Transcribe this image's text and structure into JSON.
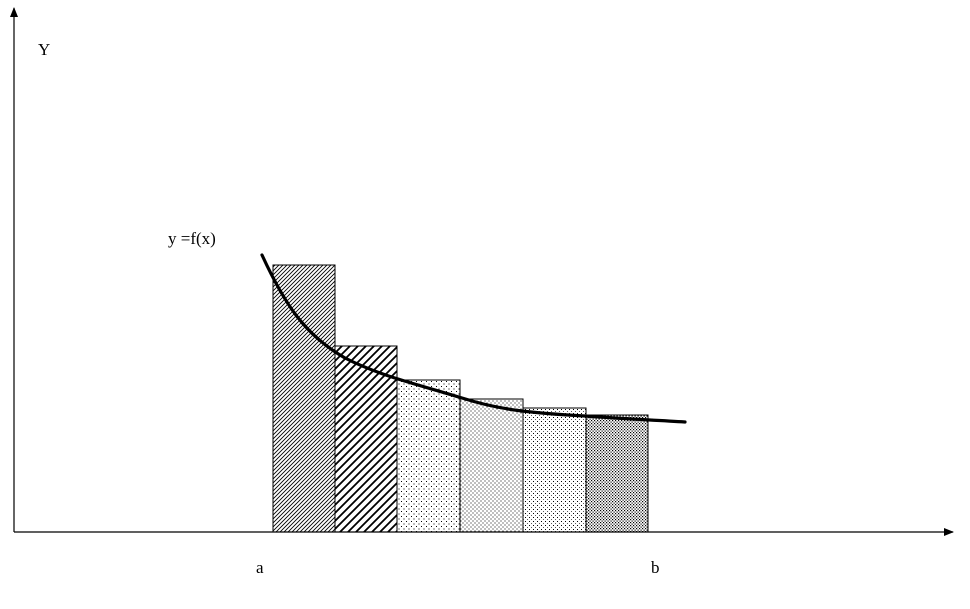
{
  "diagram": {
    "y_axis_label": "Y",
    "curve_label": "y =f(x)",
    "x_marks": {
      "a": "a",
      "b": "b"
    },
    "line_color": "#000000",
    "background": "#ffffff",
    "rectangles": [
      {
        "pattern": "dense-diagonal"
      },
      {
        "pattern": "wide-diagonal"
      },
      {
        "pattern": "sparse-dots"
      },
      {
        "pattern": "medium-dots"
      },
      {
        "pattern": "fine-dots"
      },
      {
        "pattern": "dense-dots"
      }
    ]
  }
}
